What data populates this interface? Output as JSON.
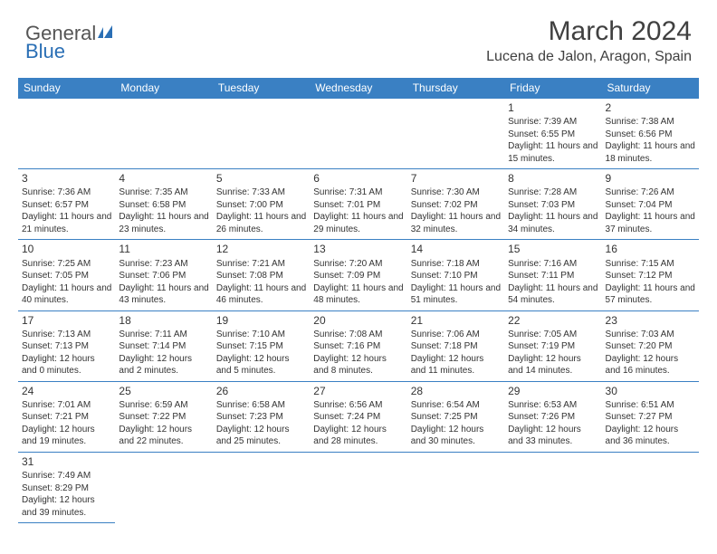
{
  "logo": {
    "text1": "General",
    "text2": "Blue"
  },
  "title": "March 2024",
  "location": "Lucena de Jalon, Aragon, Spain",
  "colors": {
    "header_bg": "#3a80c3",
    "header_fg": "#ffffff",
    "border": "#3a80c3",
    "logo_blue": "#2a6fb5",
    "text": "#333333",
    "title": "#404040"
  },
  "day_headers": [
    "Sunday",
    "Monday",
    "Tuesday",
    "Wednesday",
    "Thursday",
    "Friday",
    "Saturday"
  ],
  "weeks": [
    [
      null,
      null,
      null,
      null,
      null,
      {
        "d": "1",
        "sr": "7:39 AM",
        "ss": "6:55 PM",
        "dl": "11 hours and 15 minutes."
      },
      {
        "d": "2",
        "sr": "7:38 AM",
        "ss": "6:56 PM",
        "dl": "11 hours and 18 minutes."
      }
    ],
    [
      {
        "d": "3",
        "sr": "7:36 AM",
        "ss": "6:57 PM",
        "dl": "11 hours and 21 minutes."
      },
      {
        "d": "4",
        "sr": "7:35 AM",
        "ss": "6:58 PM",
        "dl": "11 hours and 23 minutes."
      },
      {
        "d": "5",
        "sr": "7:33 AM",
        "ss": "7:00 PM",
        "dl": "11 hours and 26 minutes."
      },
      {
        "d": "6",
        "sr": "7:31 AM",
        "ss": "7:01 PM",
        "dl": "11 hours and 29 minutes."
      },
      {
        "d": "7",
        "sr": "7:30 AM",
        "ss": "7:02 PM",
        "dl": "11 hours and 32 minutes."
      },
      {
        "d": "8",
        "sr": "7:28 AM",
        "ss": "7:03 PM",
        "dl": "11 hours and 34 minutes."
      },
      {
        "d": "9",
        "sr": "7:26 AM",
        "ss": "7:04 PM",
        "dl": "11 hours and 37 minutes."
      }
    ],
    [
      {
        "d": "10",
        "sr": "7:25 AM",
        "ss": "7:05 PM",
        "dl": "11 hours and 40 minutes."
      },
      {
        "d": "11",
        "sr": "7:23 AM",
        "ss": "7:06 PM",
        "dl": "11 hours and 43 minutes."
      },
      {
        "d": "12",
        "sr": "7:21 AM",
        "ss": "7:08 PM",
        "dl": "11 hours and 46 minutes."
      },
      {
        "d": "13",
        "sr": "7:20 AM",
        "ss": "7:09 PM",
        "dl": "11 hours and 48 minutes."
      },
      {
        "d": "14",
        "sr": "7:18 AM",
        "ss": "7:10 PM",
        "dl": "11 hours and 51 minutes."
      },
      {
        "d": "15",
        "sr": "7:16 AM",
        "ss": "7:11 PM",
        "dl": "11 hours and 54 minutes."
      },
      {
        "d": "16",
        "sr": "7:15 AM",
        "ss": "7:12 PM",
        "dl": "11 hours and 57 minutes."
      }
    ],
    [
      {
        "d": "17",
        "sr": "7:13 AM",
        "ss": "7:13 PM",
        "dl": "12 hours and 0 minutes."
      },
      {
        "d": "18",
        "sr": "7:11 AM",
        "ss": "7:14 PM",
        "dl": "12 hours and 2 minutes."
      },
      {
        "d": "19",
        "sr": "7:10 AM",
        "ss": "7:15 PM",
        "dl": "12 hours and 5 minutes."
      },
      {
        "d": "20",
        "sr": "7:08 AM",
        "ss": "7:16 PM",
        "dl": "12 hours and 8 minutes."
      },
      {
        "d": "21",
        "sr": "7:06 AM",
        "ss": "7:18 PM",
        "dl": "12 hours and 11 minutes."
      },
      {
        "d": "22",
        "sr": "7:05 AM",
        "ss": "7:19 PM",
        "dl": "12 hours and 14 minutes."
      },
      {
        "d": "23",
        "sr": "7:03 AM",
        "ss": "7:20 PM",
        "dl": "12 hours and 16 minutes."
      }
    ],
    [
      {
        "d": "24",
        "sr": "7:01 AM",
        "ss": "7:21 PM",
        "dl": "12 hours and 19 minutes."
      },
      {
        "d": "25",
        "sr": "6:59 AM",
        "ss": "7:22 PM",
        "dl": "12 hours and 22 minutes."
      },
      {
        "d": "26",
        "sr": "6:58 AM",
        "ss": "7:23 PM",
        "dl": "12 hours and 25 minutes."
      },
      {
        "d": "27",
        "sr": "6:56 AM",
        "ss": "7:24 PM",
        "dl": "12 hours and 28 minutes."
      },
      {
        "d": "28",
        "sr": "6:54 AM",
        "ss": "7:25 PM",
        "dl": "12 hours and 30 minutes."
      },
      {
        "d": "29",
        "sr": "6:53 AM",
        "ss": "7:26 PM",
        "dl": "12 hours and 33 minutes."
      },
      {
        "d": "30",
        "sr": "6:51 AM",
        "ss": "7:27 PM",
        "dl": "12 hours and 36 minutes."
      }
    ],
    [
      {
        "d": "31",
        "sr": "7:49 AM",
        "ss": "8:29 PM",
        "dl": "12 hours and 39 minutes."
      },
      null,
      null,
      null,
      null,
      null,
      null
    ]
  ],
  "labels": {
    "sunrise": "Sunrise:",
    "sunset": "Sunset:",
    "daylight": "Daylight:"
  }
}
